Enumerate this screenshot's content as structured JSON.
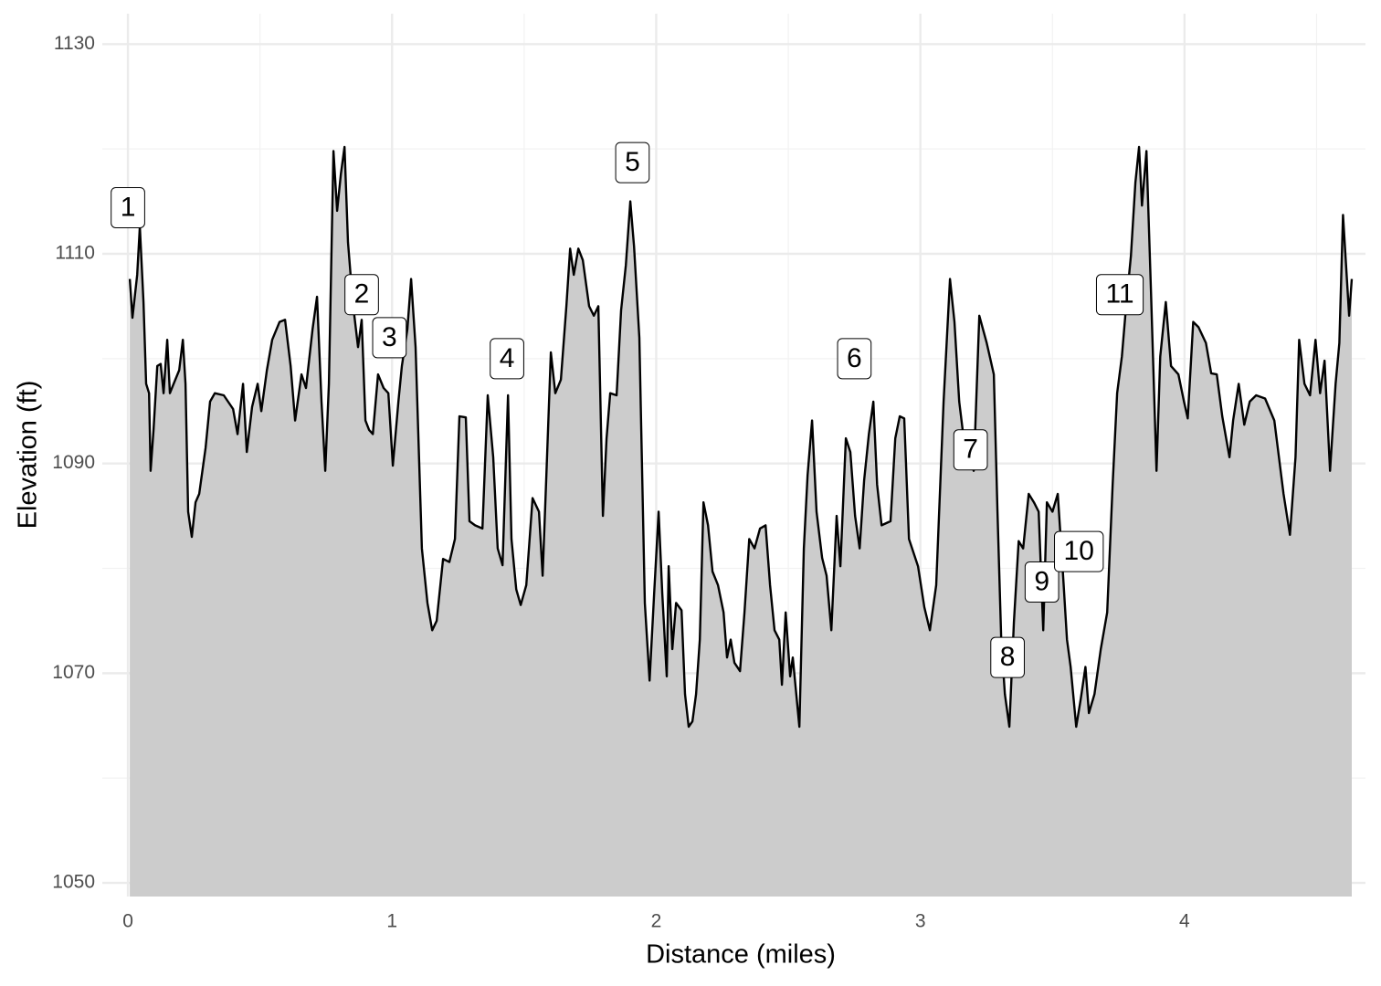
{
  "chart_data": {
    "type": "area",
    "xlabel": "Distance (miles)",
    "ylabel": "Elevation (ft)",
    "xlim": [
      -0.097,
      4.685
    ],
    "ylim": [
      1048.7,
      1132.9
    ],
    "xticks": [
      0,
      1,
      2,
      3,
      4
    ],
    "yticks": [
      1050,
      1070,
      1090,
      1110,
      1130
    ],
    "grid": true,
    "fill_color": "#cccccc",
    "line_color": "#000000",
    "x": [
      0.007,
      0.017,
      0.035,
      0.045,
      0.059,
      0.069,
      0.08,
      0.086,
      0.097,
      0.111,
      0.124,
      0.135,
      0.149,
      0.159,
      0.173,
      0.194,
      0.208,
      0.218,
      0.228,
      0.242,
      0.256,
      0.27,
      0.294,
      0.311,
      0.329,
      0.363,
      0.398,
      0.415,
      0.436,
      0.45,
      0.47,
      0.491,
      0.505,
      0.526,
      0.546,
      0.574,
      0.595,
      0.616,
      0.633,
      0.657,
      0.674,
      0.699,
      0.716,
      0.733,
      0.747,
      0.761,
      0.778,
      0.792,
      0.806,
      0.82,
      0.833,
      0.851,
      0.871,
      0.885,
      0.899,
      0.913,
      0.927,
      0.947,
      0.968,
      0.986,
      1.003,
      1.024,
      1.037,
      1.058,
      1.072,
      1.089,
      1.113,
      1.134,
      1.152,
      1.169,
      1.193,
      1.217,
      1.238,
      1.255,
      1.279,
      1.293,
      1.314,
      1.342,
      1.362,
      1.383,
      1.4,
      1.418,
      1.439,
      1.452,
      1.47,
      1.487,
      1.508,
      1.532,
      1.556,
      1.57,
      1.584,
      1.601,
      1.618,
      1.639,
      1.66,
      1.674,
      1.688,
      1.705,
      1.722,
      1.746,
      1.764,
      1.781,
      1.798,
      1.812,
      1.826,
      1.85,
      1.867,
      1.885,
      1.902,
      1.916,
      1.936,
      1.957,
      1.975,
      1.992,
      2.009,
      2.023,
      2.04,
      2.047,
      2.061,
      2.075,
      2.096,
      2.109,
      2.123,
      2.137,
      2.151,
      2.165,
      2.179,
      2.196,
      2.213,
      2.234,
      2.255,
      2.268,
      2.282,
      2.296,
      2.317,
      2.334,
      2.352,
      2.372,
      2.393,
      2.414,
      2.431,
      2.448,
      2.466,
      2.476,
      2.49,
      2.507,
      2.517,
      2.542,
      2.559,
      2.573,
      2.59,
      2.607,
      2.628,
      2.645,
      2.663,
      2.683,
      2.697,
      2.718,
      2.735,
      2.753,
      2.77,
      2.787,
      2.805,
      2.822,
      2.836,
      2.853,
      2.887,
      2.905,
      2.922,
      2.939,
      2.957,
      2.991,
      3.015,
      3.036,
      3.06,
      3.088,
      3.112,
      3.129,
      3.147,
      3.164,
      3.181,
      3.202,
      3.223,
      3.251,
      3.278,
      3.292,
      3.306,
      3.32,
      3.337,
      3.354,
      3.372,
      3.389,
      3.41,
      3.43,
      3.448,
      3.465,
      3.479,
      3.5,
      3.52,
      3.538,
      3.555,
      3.569,
      3.59,
      3.607,
      3.625,
      3.638,
      3.659,
      3.683,
      3.707,
      3.728,
      3.745,
      3.763,
      3.78,
      3.797,
      3.814,
      3.828,
      3.839,
      3.856,
      3.873,
      3.894,
      3.908,
      3.929,
      3.949,
      3.977,
      3.998,
      4.012,
      4.033,
      4.053,
      4.081,
      4.101,
      4.122,
      4.143,
      4.17,
      4.184,
      4.205,
      4.226,
      4.247,
      4.271,
      4.305,
      4.34,
      4.375,
      4.399,
      4.42,
      4.434,
      4.454,
      4.475,
      4.496,
      4.513,
      4.53,
      4.551,
      4.572,
      4.586,
      4.6,
      4.623,
      4.633
    ],
    "values": [
      1107.6,
      1103.9,
      1108.0,
      1112.6,
      1105.4,
      1097.6,
      1096.7,
      1089.3,
      1093.2,
      1099.3,
      1099.5,
      1096.7,
      1101.8,
      1096.7,
      1097.6,
      1098.9,
      1101.8,
      1097.6,
      1085.4,
      1083.0,
      1086.3,
      1087.1,
      1091.5,
      1095.9,
      1096.7,
      1096.5,
      1095.2,
      1092.8,
      1097.6,
      1091.1,
      1095.4,
      1097.6,
      1095.0,
      1098.9,
      1101.8,
      1103.5,
      1103.7,
      1099.3,
      1094.1,
      1098.5,
      1097.2,
      1102.8,
      1105.9,
      1095.9,
      1089.3,
      1097.6,
      1119.8,
      1114.1,
      1117.6,
      1120.2,
      1111.1,
      1105.4,
      1101.1,
      1103.7,
      1094.1,
      1093.2,
      1092.8,
      1098.5,
      1097.2,
      1096.7,
      1089.8,
      1095.9,
      1099.3,
      1102.8,
      1107.6,
      1101.1,
      1081.9,
      1076.7,
      1074.1,
      1075.0,
      1080.9,
      1080.6,
      1082.8,
      1094.5,
      1094.4,
      1084.5,
      1084.1,
      1083.8,
      1096.5,
      1090.6,
      1081.9,
      1080.3,
      1096.5,
      1082.8,
      1078.0,
      1076.5,
      1078.4,
      1086.7,
      1085.4,
      1079.3,
      1088.9,
      1100.6,
      1096.7,
      1098.0,
      1105.0,
      1110.5,
      1108.0,
      1110.5,
      1109.4,
      1105.0,
      1104.1,
      1105.0,
      1085.0,
      1092.4,
      1096.7,
      1096.5,
      1104.6,
      1108.9,
      1115.0,
      1110.7,
      1102.0,
      1076.7,
      1069.3,
      1077.6,
      1085.4,
      1077.6,
      1069.7,
      1080.2,
      1072.3,
      1076.7,
      1076.0,
      1068.0,
      1064.9,
      1065.4,
      1068.0,
      1073.2,
      1086.3,
      1084.1,
      1079.7,
      1078.4,
      1075.8,
      1071.5,
      1073.2,
      1071.0,
      1070.2,
      1075.8,
      1082.8,
      1081.9,
      1083.8,
      1084.1,
      1078.4,
      1074.1,
      1073.2,
      1068.9,
      1075.8,
      1069.7,
      1071.5,
      1064.9,
      1081.9,
      1088.9,
      1094.1,
      1085.4,
      1081.0,
      1079.3,
      1074.1,
      1085.0,
      1080.2,
      1092.4,
      1091.1,
      1085.0,
      1081.9,
      1088.4,
      1092.8,
      1095.9,
      1088.0,
      1084.1,
      1084.5,
      1092.4,
      1094.5,
      1094.3,
      1082.8,
      1080.2,
      1076.3,
      1074.1,
      1078.4,
      1095.9,
      1107.6,
      1103.5,
      1095.9,
      1092.4,
      1090.6,
      1089.3,
      1104.1,
      1101.5,
      1098.5,
      1085.4,
      1073.2,
      1068.0,
      1064.9,
      1074.9,
      1082.6,
      1081.9,
      1087.1,
      1086.3,
      1085.4,
      1074.1,
      1086.3,
      1085.4,
      1087.1,
      1080.2,
      1073.2,
      1070.6,
      1064.9,
      1067.5,
      1070.6,
      1066.2,
      1068.0,
      1072.3,
      1075.8,
      1088.0,
      1096.7,
      1100.2,
      1105.4,
      1109.8,
      1116.8,
      1120.2,
      1114.6,
      1119.8,
      1106.3,
      1089.3,
      1100.2,
      1105.4,
      1099.3,
      1098.5,
      1095.9,
      1094.3,
      1103.5,
      1103.0,
      1101.5,
      1098.6,
      1098.5,
      1094.5,
      1090.6,
      1094.1,
      1097.6,
      1093.7,
      1095.9,
      1096.5,
      1096.2,
      1094.1,
      1087.1,
      1083.2,
      1090.6,
      1101.8,
      1097.6,
      1096.5,
      1101.8,
      1096.7,
      1099.8,
      1089.3,
      1097.6,
      1101.5,
      1113.7,
      1104.1,
      1107.6
    ],
    "annotations": [
      {
        "label": "1",
        "x": 0.0,
        "y": 1114.4
      },
      {
        "label": "2",
        "x": 0.885,
        "y": 1106.1
      },
      {
        "label": "3",
        "x": 0.99,
        "y": 1102.0
      },
      {
        "label": "4",
        "x": 1.435,
        "y": 1100.0
      },
      {
        "label": "5",
        "x": 1.91,
        "y": 1118.7
      },
      {
        "label": "6",
        "x": 2.75,
        "y": 1100.0
      },
      {
        "label": "7",
        "x": 3.19,
        "y": 1091.3
      },
      {
        "label": "8",
        "x": 3.33,
        "y": 1071.5
      },
      {
        "label": "9",
        "x": 3.46,
        "y": 1078.7
      },
      {
        "label": "10",
        "x": 3.6,
        "y": 1081.6
      },
      {
        "label": "11",
        "x": 3.755,
        "y": 1106.1
      }
    ]
  }
}
